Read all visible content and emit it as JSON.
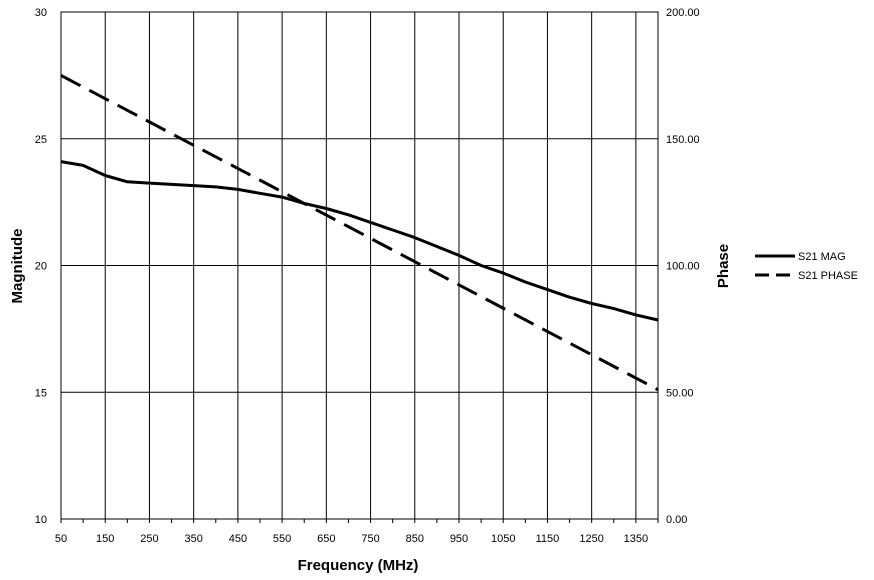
{
  "chart_data": {
    "type": "line",
    "xlabel": "Frequency (MHz)",
    "ylabel": "Magnitude",
    "y2label": "Phase",
    "xlim": [
      50,
      1400
    ],
    "ylim": [
      10,
      30
    ],
    "y2lim": [
      0,
      200
    ],
    "grid": true,
    "legend_position": "right",
    "x_ticks": [
      "50",
      "150",
      "250",
      "350",
      "450",
      "550",
      "650",
      "750",
      "850",
      "950",
      "1050",
      "1150",
      "1250",
      "1350"
    ],
    "y_ticks": [
      "10",
      "15",
      "20",
      "25",
      "30"
    ],
    "y2_ticks": [
      "0.00",
      "50.00",
      "100.00",
      "150.00",
      "200.00"
    ],
    "series": [
      {
        "name": "S21 MAG",
        "axis": "left",
        "style": "solid",
        "x": [
          50,
          100,
          150,
          200,
          250,
          300,
          350,
          400,
          450,
          500,
          550,
          600,
          650,
          700,
          750,
          800,
          850,
          900,
          950,
          1000,
          1050,
          1100,
          1150,
          1200,
          1250,
          1300,
          1350,
          1400
        ],
        "y": [
          24.1,
          23.95,
          23.55,
          23.3,
          23.25,
          23.2,
          23.15,
          23.1,
          23.0,
          22.85,
          22.7,
          22.45,
          22.25,
          22.0,
          21.7,
          21.4,
          21.1,
          20.75,
          20.4,
          20.0,
          19.7,
          19.35,
          19.05,
          18.75,
          18.5,
          18.3,
          18.05,
          17.85
        ]
      },
      {
        "name": "S21 PHASE",
        "axis": "right",
        "style": "dashed",
        "x": [
          50,
          1400
        ],
        "y": [
          175,
          51
        ]
      }
    ]
  }
}
